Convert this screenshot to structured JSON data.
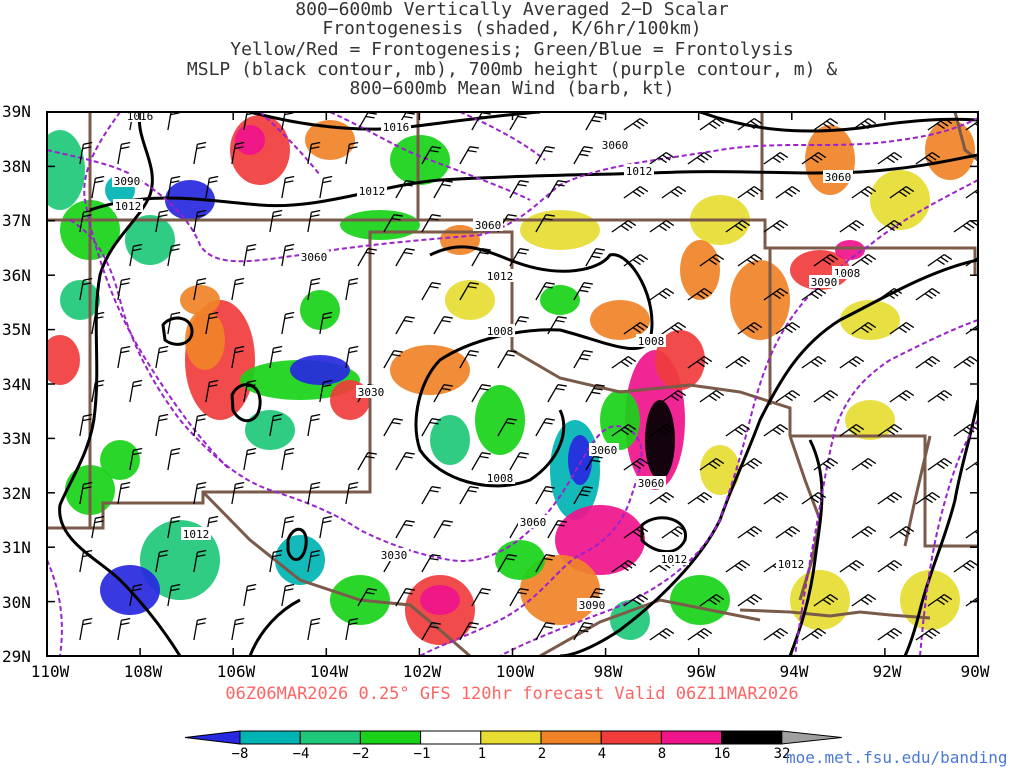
{
  "title_lines": [
    "800−600mb Vertically Averaged 2−D Scalar",
    "Frontogenesis (shaded, K/6hr/100km)",
    "Yellow/Red = Frontogenesis;  Green/Blue = Frontolysis",
    "MSLP (black contour, mb), 700mb height (purple contour, m) &",
    "800−600mb Mean Wind (barb, kt)"
  ],
  "axes": {
    "lat_labels": [
      "39N",
      "38N",
      "37N",
      "36N",
      "35N",
      "34N",
      "33N",
      "32N",
      "31N",
      "30N",
      "29N"
    ],
    "lon_labels": [
      "110W",
      "108W",
      "106W",
      "104W",
      "102W",
      "100W",
      "98W",
      "96W",
      "94W",
      "92W",
      "90W"
    ]
  },
  "footer": "06Z06MAR2026 0.25° GFS 120hr forecast Valid 06Z11MAR2026",
  "colorbar": {
    "labels": [
      "−8",
      "−4",
      "−2",
      "−1",
      "1",
      "2",
      "4",
      "8",
      "16",
      "32"
    ],
    "colors": [
      "#2828e0",
      "#00b4b4",
      "#1ec878",
      "#19d219",
      "#ffffff",
      "#e6dc32",
      "#f08228",
      "#f03c3c",
      "#f0148c",
      "#000000",
      "#a0a0a0"
    ]
  },
  "contour_labels": {
    "mslp": [
      "1016",
      "1016",
      "1012",
      "1012",
      "1012",
      "1012",
      "1008",
      "1008",
      "1008",
      "1008",
      "1012",
      "1012",
      "1012"
    ],
    "height": [
      "3060",
      "3090",
      "3060",
      "3060",
      "3060",
      "3030",
      "3090",
      "3060",
      "3060",
      "3060",
      "3030",
      "3090"
    ]
  },
  "credit": "moe.met.fsu.edu/banding"
}
